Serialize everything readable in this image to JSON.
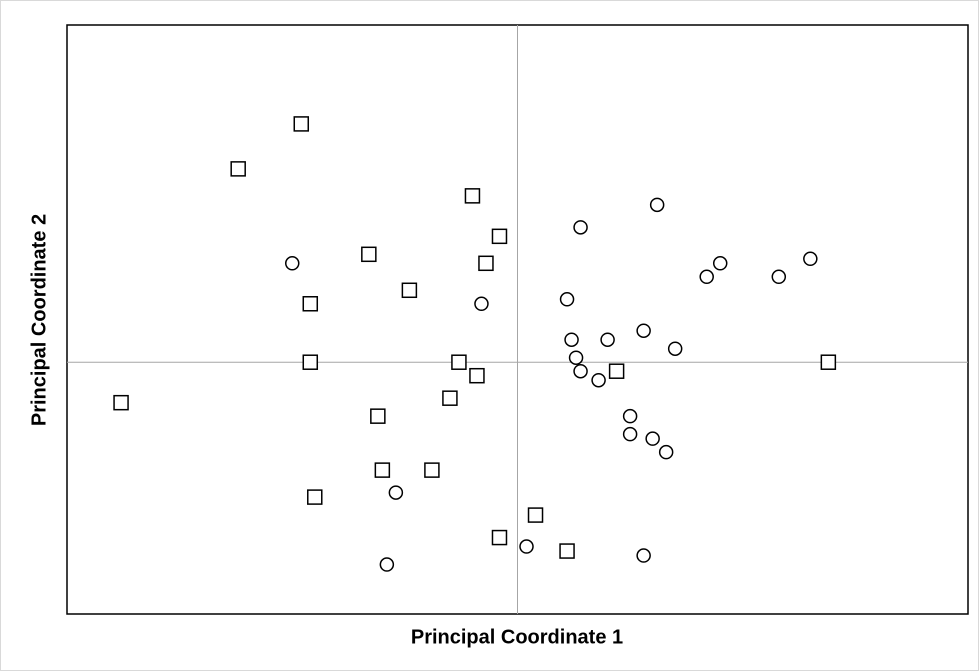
{
  "chart_data": {
    "type": "scatter",
    "x_label": "Principal Coordinate 1",
    "y_label": "Principal Coordinate 2",
    "xlim": [
      -1,
      1
    ],
    "ylim": [
      -0.56,
      0.75
    ],
    "zero_lines": true,
    "series": [
      {
        "marker": "square",
        "color": "#000000",
        "x": [
          -0.48,
          -0.62,
          -0.1,
          -0.04,
          -0.33,
          -0.07,
          -0.24,
          -0.46,
          -0.46,
          -0.13,
          -0.09,
          0.22,
          0.69,
          -0.88,
          -0.15,
          -0.31,
          -0.3,
          -0.19,
          -0.45,
          0.04,
          -0.04,
          0.11
        ],
        "values": [
          0.53,
          0.43,
          0.37,
          0.28,
          0.24,
          0.22,
          0.16,
          0.13,
          0.0,
          0.0,
          -0.03,
          -0.02,
          0.0,
          -0.09,
          -0.08,
          -0.12,
          -0.24,
          -0.24,
          -0.3,
          -0.34,
          -0.39,
          -0.42
        ]
      },
      {
        "marker": "circle",
        "color": "#000000",
        "x": [
          0.31,
          0.14,
          -0.5,
          0.45,
          0.42,
          0.65,
          0.58,
          -0.08,
          0.11,
          0.12,
          0.2,
          0.28,
          0.35,
          0.13,
          0.14,
          0.18,
          0.25,
          0.25,
          0.3,
          0.33,
          -0.27,
          0.02,
          0.28,
          -0.29
        ],
        "values": [
          0.35,
          0.3,
          0.22,
          0.22,
          0.19,
          0.23,
          0.19,
          0.13,
          0.14,
          0.05,
          0.05,
          0.07,
          0.03,
          0.01,
          -0.02,
          -0.04,
          -0.12,
          -0.16,
          -0.17,
          -0.2,
          -0.29,
          -0.41,
          -0.43,
          -0.45
        ]
      }
    ]
  }
}
